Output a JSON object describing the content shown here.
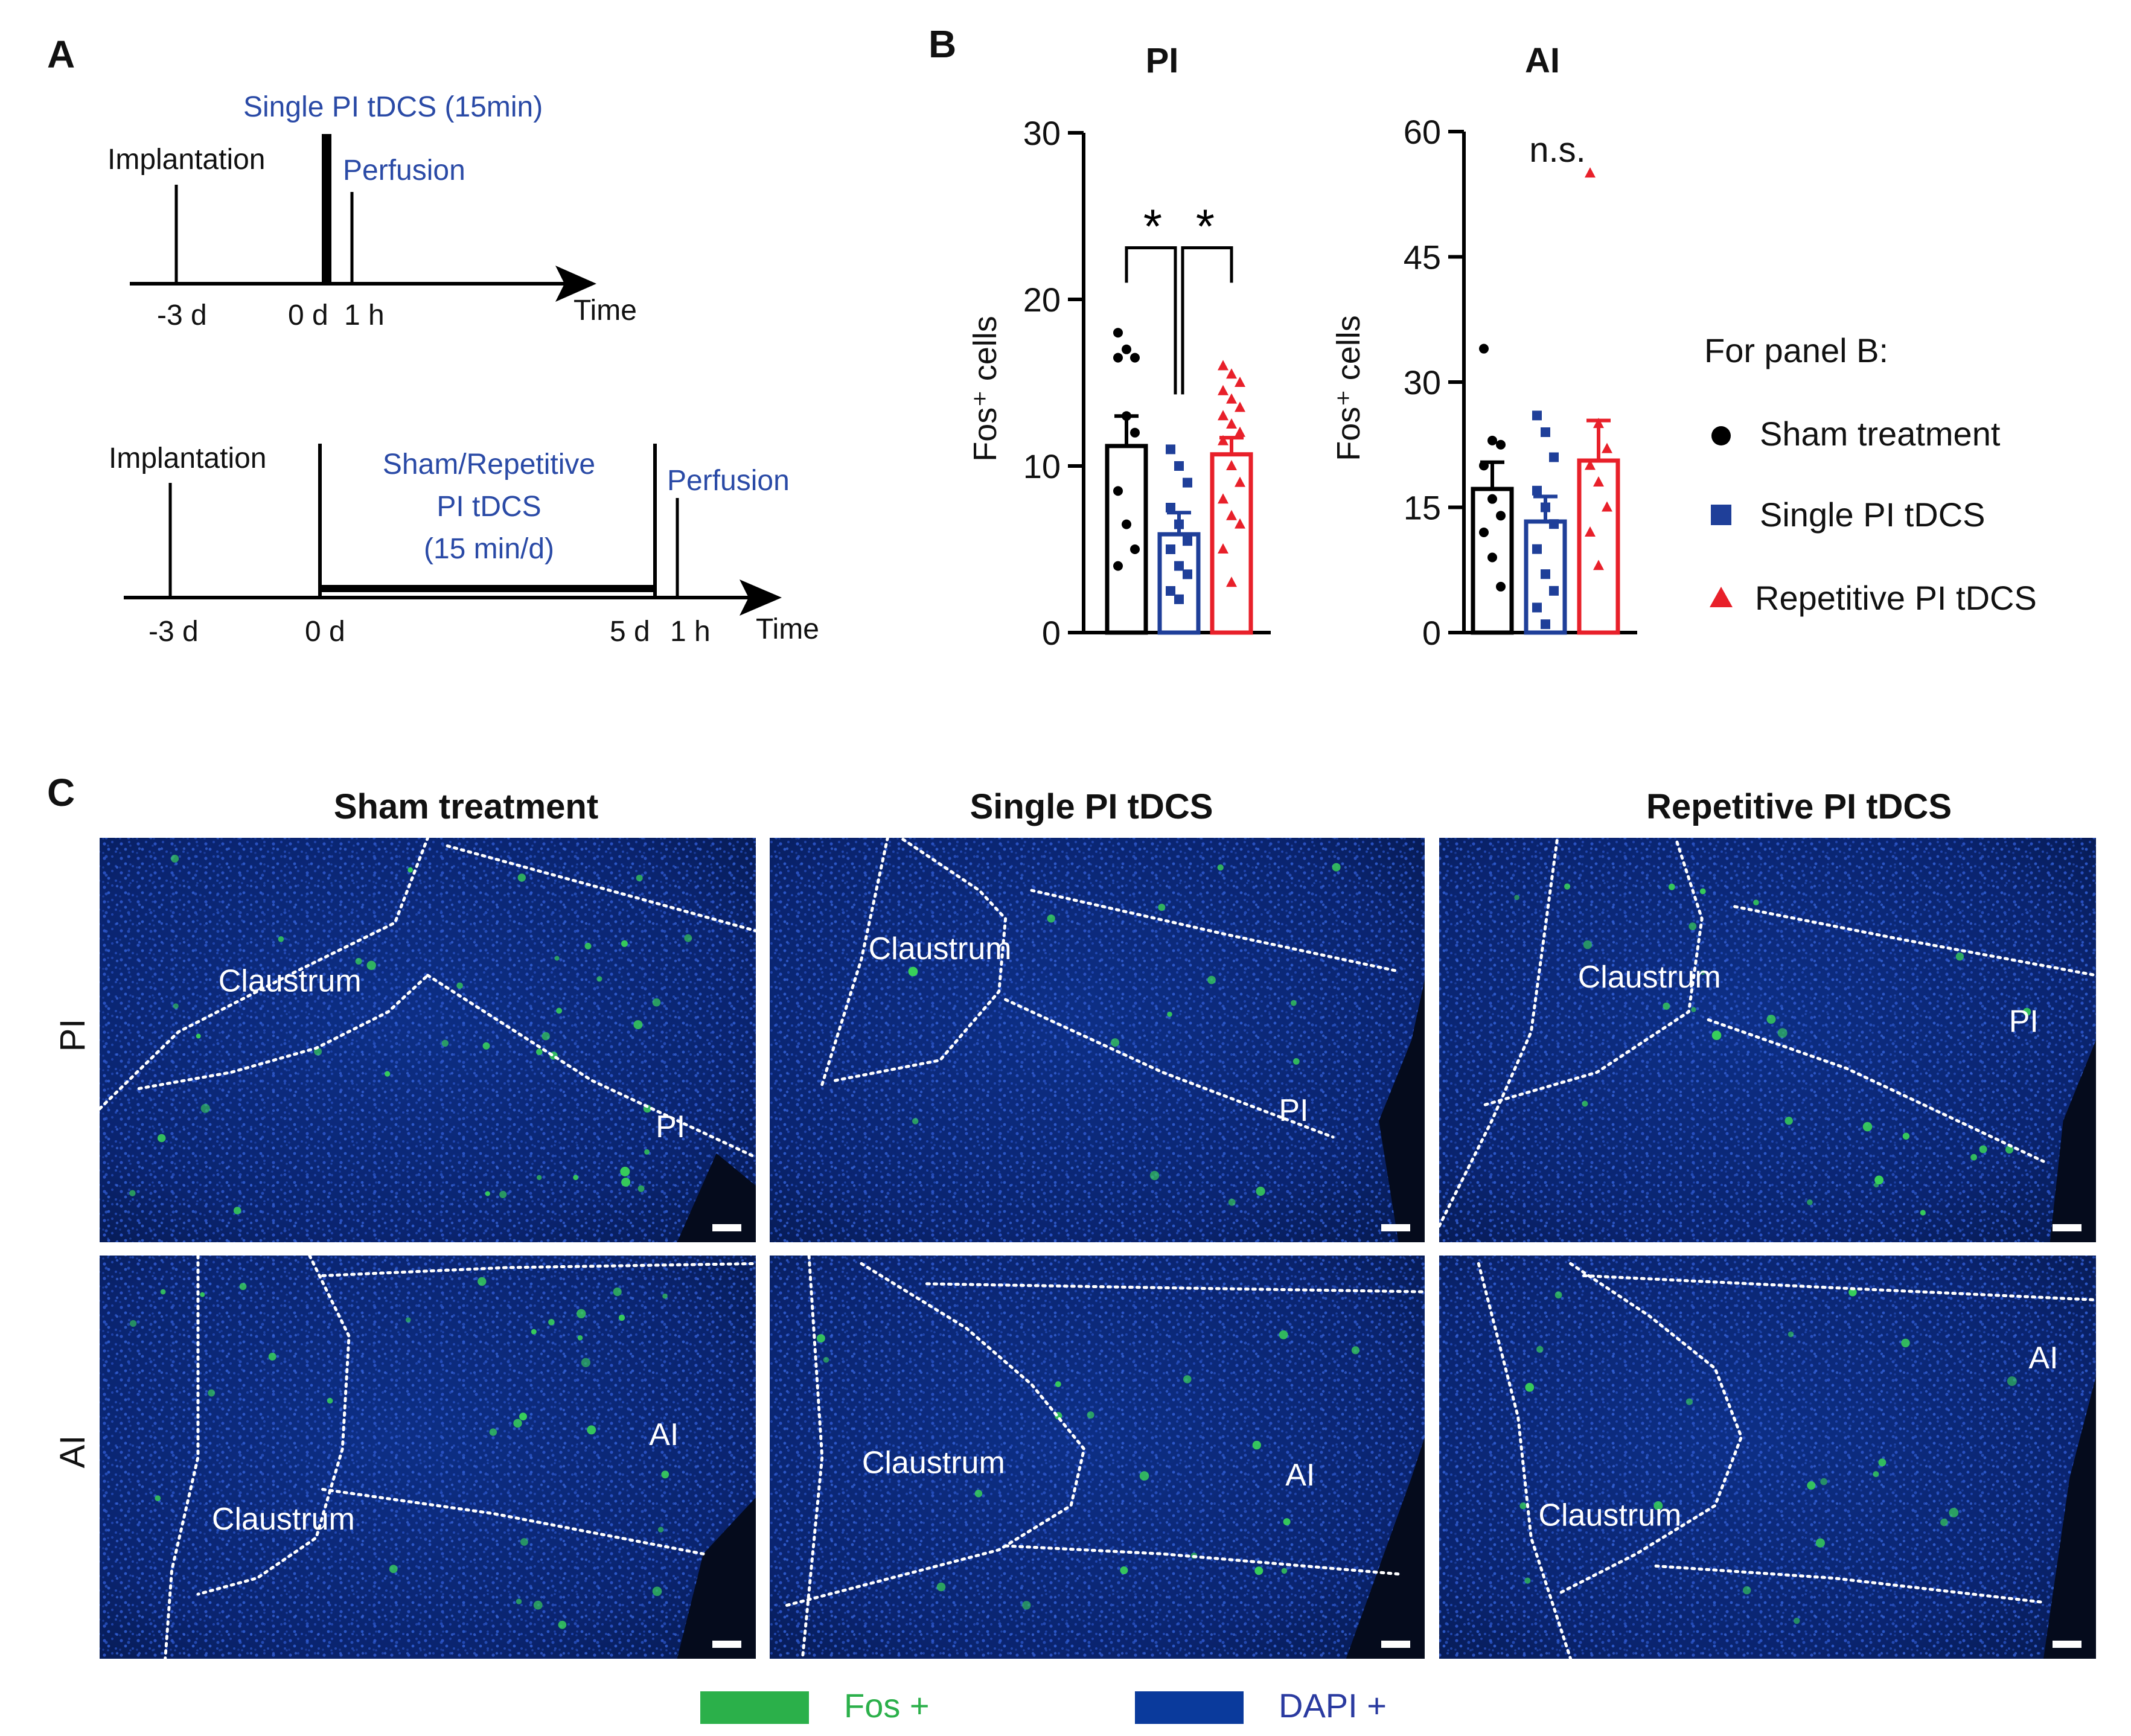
{
  "panel_labels": {
    "a": "A",
    "b": "B",
    "c": "C"
  },
  "timeline1": {
    "event_implant": "Implantation",
    "event_stim": "Single PI tDCS (15min)",
    "event_perfusion": "Perfusion",
    "ticks": [
      "-3 d",
      "0 d",
      "1 h"
    ],
    "axis_label": "Time"
  },
  "timeline2": {
    "event_implant": "Implantation",
    "stim_line1": "Sham/Repetitive",
    "stim_line2": "PI tDCS",
    "stim_line3": "(15 min/d)",
    "event_perfusion": "Perfusion",
    "ticks": [
      "-3 d",
      "0 d",
      "5 d",
      "1 h"
    ],
    "axis_label": "Time"
  },
  "colors": {
    "sham": "#000000",
    "single": "#1f3f99",
    "repetitive": "#e8202a",
    "timeline_blue": "#2a4aa6",
    "fos": "#2bb04a",
    "dapi": "#0a3a9c"
  },
  "chart_data": [
    {
      "type": "bar",
      "title": "PI",
      "ylabel": "Fos⁺ cells",
      "ylim": [
        0,
        30
      ],
      "yticks": [
        "0",
        "10",
        "20",
        "30"
      ],
      "categories": [
        "Sham treatment",
        "Single PI tDCS",
        "Repetitive PI tDCS"
      ],
      "values": [
        11.2,
        5.9,
        10.7
      ],
      "sem": [
        1.8,
        1.3,
        1.0
      ],
      "points": [
        [
          18,
          17,
          16.5,
          16.5,
          13,
          12,
          8.5,
          6.5,
          5,
          4
        ],
        [
          11,
          10,
          9,
          7.5,
          6.5,
          5.5,
          5,
          4,
          3.5,
          2.5,
          2
        ],
        [
          16,
          15.5,
          15,
          14.5,
          14,
          13.5,
          13,
          12.5,
          12,
          11.5,
          10,
          9,
          8,
          7,
          6.5,
          5,
          3
        ]
      ],
      "annotations": [
        "*",
        "*"
      ]
    },
    {
      "type": "bar",
      "title": "AI",
      "ylabel": "Fos⁺ cells",
      "ylim": [
        0,
        60
      ],
      "yticks": [
        "0",
        "15",
        "30",
        "45",
        "60"
      ],
      "categories": [
        "Sham treatment",
        "Single PI tDCS",
        "Repetitive PI tDCS"
      ],
      "values": [
        17.2,
        13.3,
        20.6
      ],
      "sem": [
        3.2,
        3.0,
        4.8
      ],
      "points": [
        [
          34,
          23,
          22.5,
          20,
          16,
          14,
          12,
          9,
          5.5
        ],
        [
          26,
          24,
          21,
          17,
          15,
          13,
          10,
          7,
          5,
          3,
          1
        ],
        [
          55,
          25,
          22,
          20,
          18,
          15,
          12,
          8
        ]
      ],
      "annotations": [
        "n.s."
      ]
    }
  ],
  "legend_b": {
    "title": "For panel B:",
    "items": [
      "Sham treatment",
      "Single PI tDCS",
      "Repetitive PI tDCS"
    ]
  },
  "panel_c": {
    "columns": [
      "Sham treatment",
      "Single PI tDCS",
      "Repetitive PI tDCS"
    ],
    "rows": [
      "PI",
      "AI"
    ],
    "labels": {
      "claustrum": "Claustrum",
      "pi": "PI",
      "ai": "AI"
    },
    "legend": [
      "Fos +",
      "DAPI +"
    ]
  }
}
